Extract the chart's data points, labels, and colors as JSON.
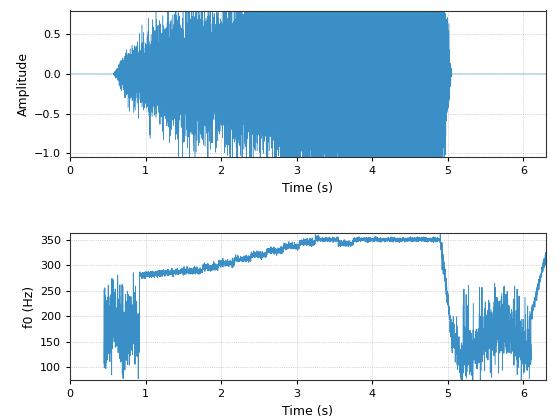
{
  "xlabel": "Time (s)",
  "ylabel1": "Amplitude",
  "ylabel2": "f0 (Hz)",
  "xlim": [
    0,
    6.3
  ],
  "ylim1": [
    -1.05,
    0.8
  ],
  "ylim2": [
    75,
    362
  ],
  "yticks1": [
    -1,
    -0.5,
    0,
    0.5
  ],
  "yticks2": [
    100,
    150,
    200,
    250,
    300,
    350
  ],
  "xticks": [
    0,
    1,
    2,
    3,
    4,
    5,
    6
  ],
  "line_color": "#3b8fc7",
  "bg_color": "#ffffff",
  "grid_color": "#aaaaaa",
  "duration": 6.3
}
